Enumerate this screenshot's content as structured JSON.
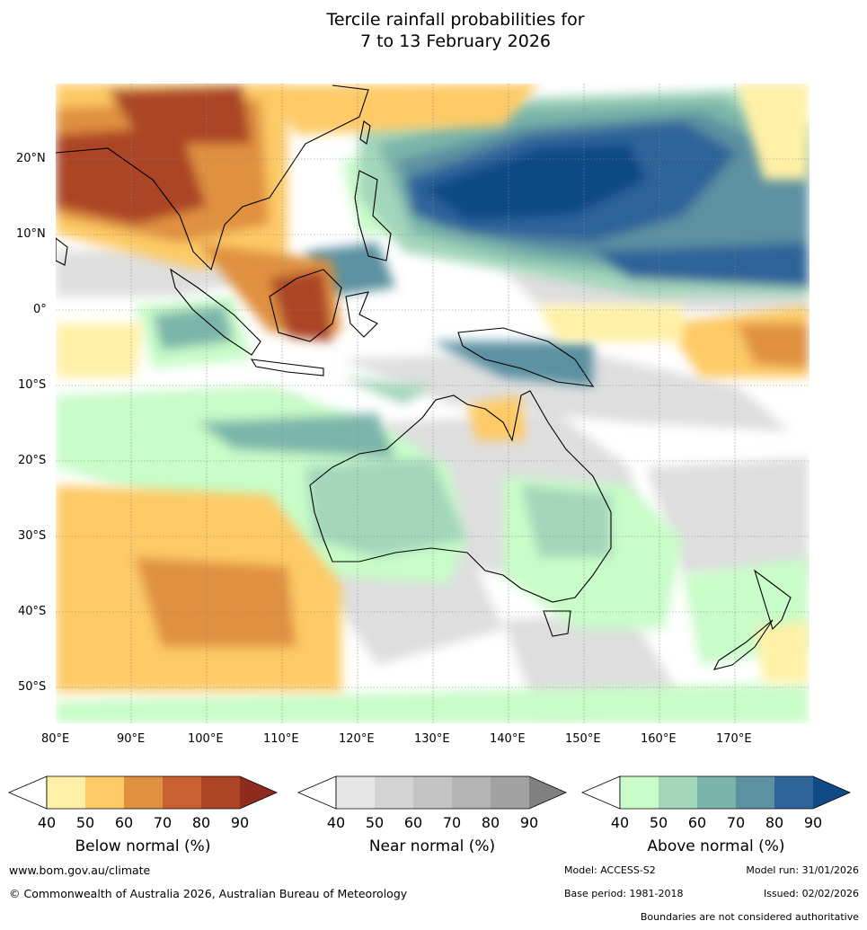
{
  "title": {
    "line1": "Tercile rainfall probabilities for",
    "line2": "7 to 13 February 2026"
  },
  "map": {
    "lat_labels": [
      "20°N",
      "10°N",
      "0°",
      "10°S",
      "20°S",
      "30°S",
      "40°S",
      "50°S"
    ],
    "lon_labels": [
      "80°E",
      "90°E",
      "100°E",
      "110°E",
      "120°E",
      "130°E",
      "140°E",
      "150°E",
      "160°E",
      "170°E"
    ]
  },
  "legends": [
    {
      "name": "below",
      "caption": "Below normal (%)",
      "ticks": [
        "40",
        "50",
        "60",
        "70",
        "80",
        "90"
      ],
      "colors": [
        "#fff0a6",
        "#fdca66",
        "#e09140",
        "#c9602f",
        "#ac4425",
        "#8f2b1c"
      ]
    },
    {
      "name": "near",
      "caption": "Near normal (%)",
      "ticks": [
        "40",
        "50",
        "60",
        "70",
        "80",
        "90"
      ],
      "colors": [
        "#e6e6e6",
        "#d4d4d4",
        "#c4c4c4",
        "#b4b4b4",
        "#a1a1a1",
        "#808080"
      ]
    },
    {
      "name": "above",
      "caption": "Above normal (%)",
      "ticks": [
        "40",
        "50",
        "60",
        "70",
        "80",
        "90"
      ],
      "colors": [
        "#c8fcc8",
        "#a3d6bb",
        "#7bb5aa",
        "#5b91a1",
        "#2f649a",
        "#104a85"
      ]
    }
  ],
  "footer": {
    "url": "www.bom.gov.au/climate",
    "copyright": "© Commonwealth of Australia 2026, Australian Bureau of Meteorology",
    "model": "Model: ACCESS-S2",
    "model_run": "Model run: 31/01/2026",
    "base_period": "Base period: 1981-2018",
    "issued": "Issued: 02/02/2026",
    "disclaimer": "Boundaries are not considered authoritative"
  }
}
